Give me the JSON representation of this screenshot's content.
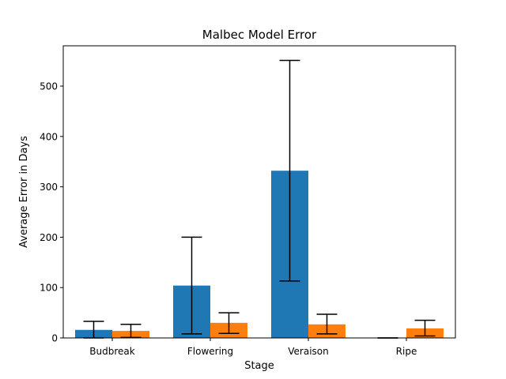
{
  "chart_data": {
    "type": "bar",
    "title": "Malbec Model Error",
    "xlabel": "Stage",
    "ylabel": "Average Error in Days",
    "ylim": [
      0,
      580
    ],
    "yticks": [
      0,
      100,
      200,
      300,
      400,
      500
    ],
    "categories": [
      "Budbreak",
      "Flowering",
      "Veraison",
      "Ripe"
    ],
    "series": [
      {
        "color": "#1f77b4",
        "values": [
          16,
          104,
          332,
          0
        ],
        "error_low": [
          0,
          8,
          113,
          0
        ],
        "error_high": [
          33,
          200,
          551,
          0
        ]
      },
      {
        "color": "#ff7f0e",
        "values": [
          14,
          30,
          27,
          19
        ],
        "error_low": [
          1,
          9,
          8,
          4
        ],
        "error_high": [
          27,
          50,
          47,
          35
        ]
      }
    ]
  }
}
